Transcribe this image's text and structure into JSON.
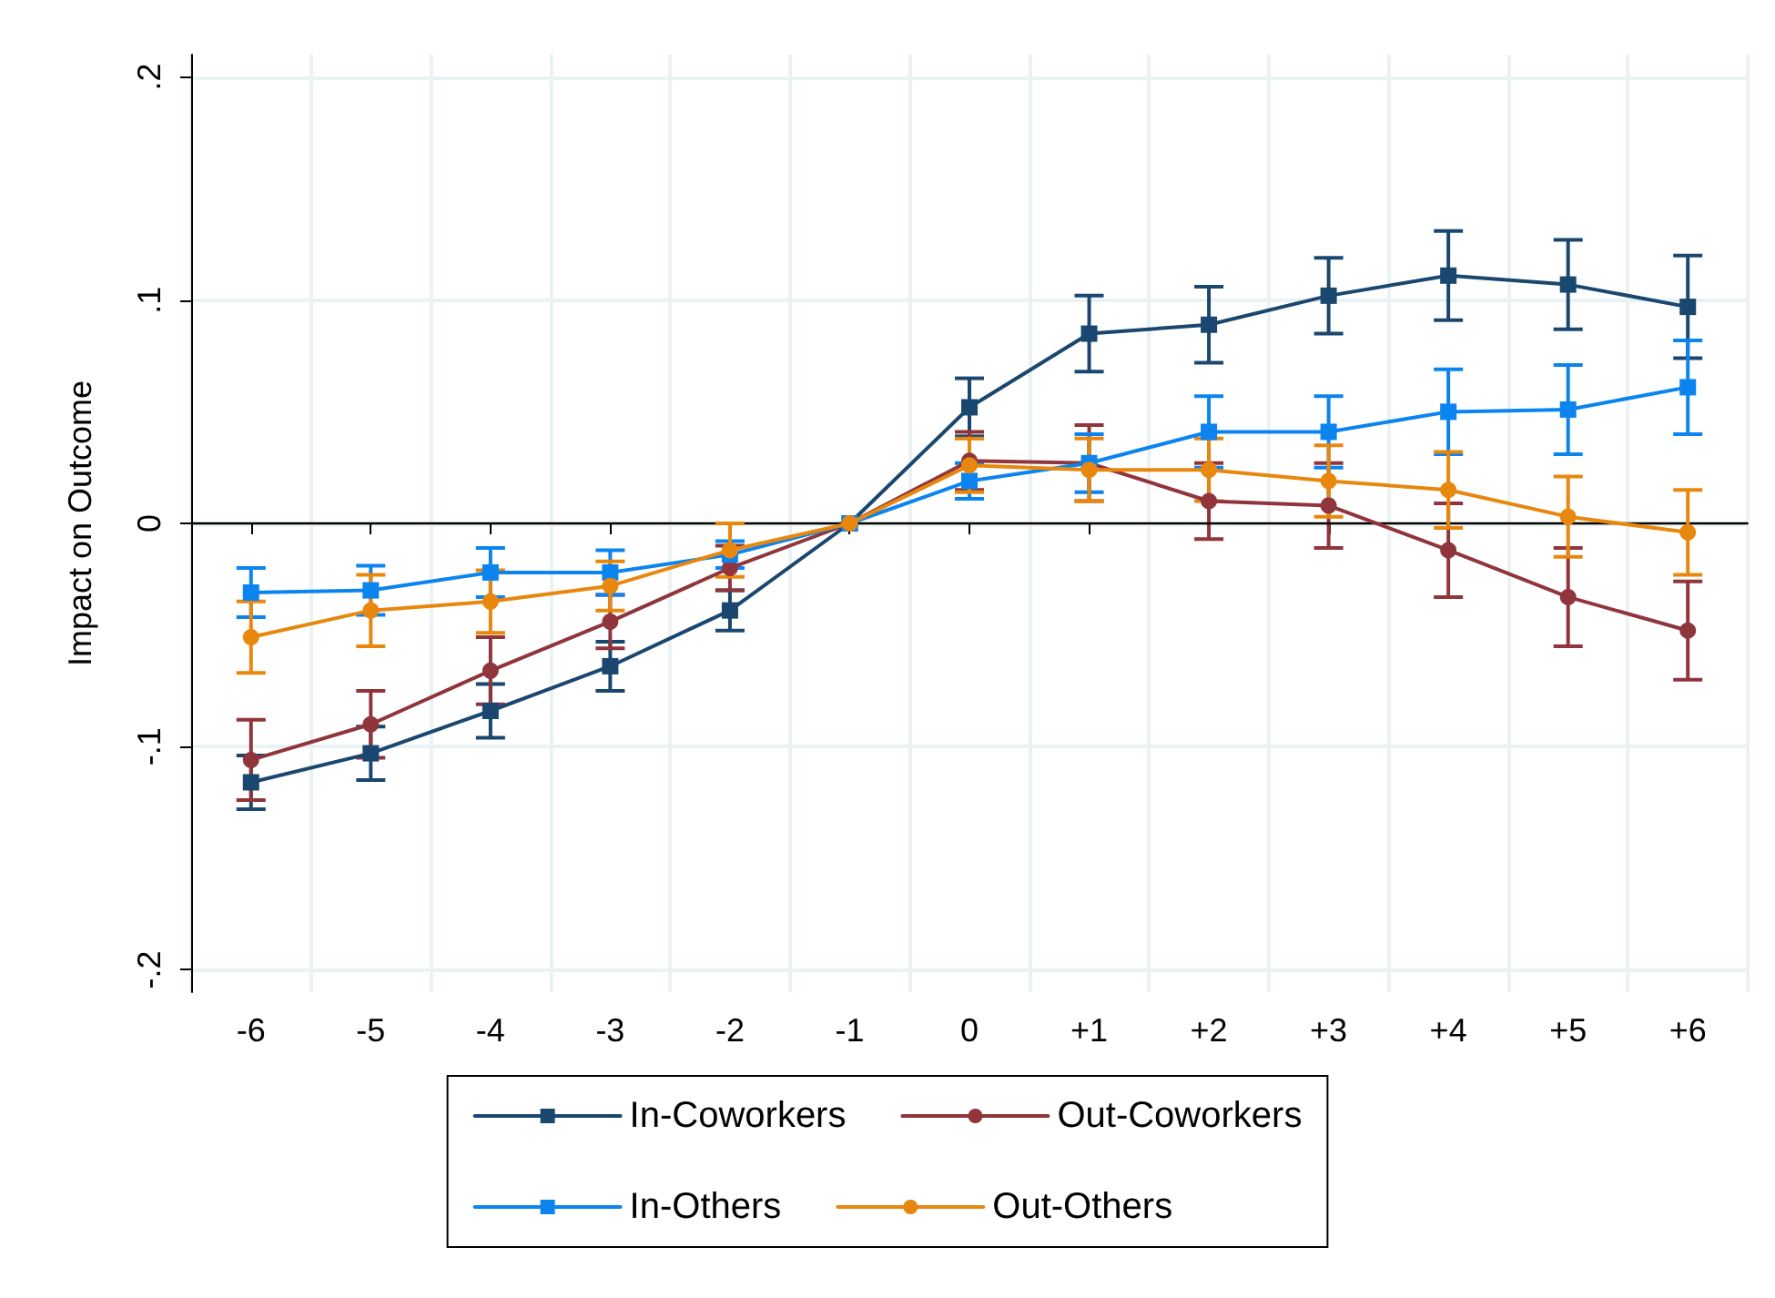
{
  "chart_data": {
    "type": "line",
    "ylabel": "Impact on Outcome",
    "categories": [
      "-6",
      "-5",
      "-4",
      "-3",
      "-2",
      "-1",
      "0",
      "+1",
      "+2",
      "+3",
      "+4",
      "+5",
      "+6"
    ],
    "series": [
      {
        "name": "In-Coworkers",
        "color": "#1a476f",
        "marker": "square",
        "values": [
          -0.116,
          -0.103,
          -0.084,
          -0.064,
          -0.039,
          0,
          0.052,
          0.085,
          0.089,
          0.102,
          0.111,
          0.107,
          0.097
        ],
        "errors": [
          0.012,
          0.012,
          0.012,
          0.011,
          0.009,
          null,
          0.013,
          0.017,
          0.017,
          0.017,
          0.02,
          0.02,
          0.023
        ]
      },
      {
        "name": "Out-Coworkers",
        "color": "#90353b",
        "marker": "circle",
        "values": [
          -0.106,
          -0.09,
          -0.066,
          -0.044,
          -0.02,
          0,
          0.028,
          0.027,
          0.01,
          0.008,
          -0.012,
          -0.033,
          -0.048
        ],
        "errors": [
          0.018,
          0.015,
          0.015,
          0.012,
          0.01,
          null,
          0.013,
          0.017,
          0.017,
          0.019,
          0.021,
          0.022,
          0.022
        ]
      },
      {
        "name": "In-Others",
        "color": "#0b84f0",
        "marker": "square",
        "values": [
          -0.031,
          -0.03,
          -0.022,
          -0.022,
          -0.014,
          0,
          0.019,
          0.027,
          0.041,
          0.041,
          0.05,
          0.051,
          0.061
        ],
        "errors": [
          0.011,
          0.011,
          0.011,
          0.01,
          0.006,
          null,
          0.008,
          0.013,
          0.016,
          0.016,
          0.019,
          0.02,
          0.021
        ]
      },
      {
        "name": "Out-Others",
        "color": "#e8870e",
        "marker": "circle",
        "values": [
          -0.051,
          -0.039,
          -0.035,
          -0.028,
          -0.012,
          0,
          0.026,
          0.024,
          0.024,
          0.019,
          0.015,
          0.003,
          -0.004
        ],
        "errors": [
          0.016,
          0.016,
          0.014,
          0.011,
          0.012,
          null,
          0.012,
          0.014,
          0.014,
          0.016,
          0.017,
          0.018,
          0.019
        ]
      }
    ],
    "ylim": [
      -0.21,
      0.21
    ],
    "yticks": [
      {
        "value": -0.2,
        "label": "-.2"
      },
      {
        "value": -0.1,
        "label": "-.1"
      },
      {
        "value": 0,
        "label": "0"
      },
      {
        "value": 0.1,
        "label": ".1"
      },
      {
        "value": 0.2,
        "label": ".2"
      }
    ],
    "ref_lines": [
      {
        "axis": "y",
        "value": 0,
        "color": "#000000"
      }
    ],
    "grid": true,
    "legend": "bottom",
    "line_style": "solid"
  }
}
